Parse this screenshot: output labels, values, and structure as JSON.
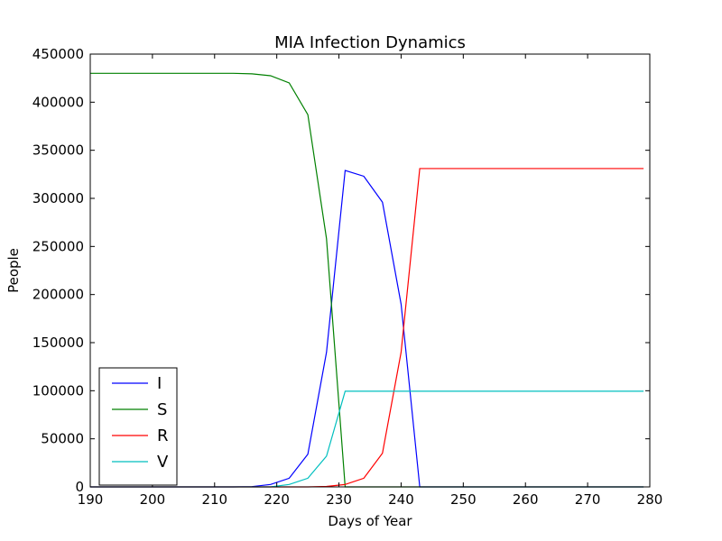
{
  "chart_data": {
    "type": "line",
    "title": "MIA Infection Dynamics",
    "xlabel": "Days of Year",
    "ylabel": "People",
    "xlim": [
      190,
      280
    ],
    "ylim": [
      0,
      450000
    ],
    "xticks": [
      190,
      200,
      210,
      220,
      230,
      240,
      250,
      260,
      270,
      280
    ],
    "yticks": [
      0,
      50000,
      100000,
      150000,
      200000,
      250000,
      300000,
      350000,
      400000,
      450000
    ],
    "grid": false,
    "legend_position": "lower-left",
    "series": [
      {
        "name": "I",
        "color": "#0000ff",
        "x": [
          190,
          213,
          216,
          219,
          222,
          225,
          228,
          231,
          234,
          237,
          240,
          243,
          279
        ],
        "y": [
          0,
          0,
          300,
          2500,
          9000,
          34000,
          140000,
          329000,
          323000,
          296000,
          190000,
          0,
          0
        ]
      },
      {
        "name": "S",
        "color": "#008000",
        "x": [
          190,
          213,
          216,
          219,
          222,
          225,
          228,
          231,
          234,
          279
        ],
        "y": [
          430000,
          430000,
          429500,
          427500,
          420000,
          387000,
          258000,
          0,
          0,
          0
        ]
      },
      {
        "name": "R",
        "color": "#ff0000",
        "x": [
          190,
          225,
          228,
          231,
          234,
          237,
          240,
          243,
          279
        ],
        "y": [
          0,
          0,
          500,
          2500,
          9000,
          35000,
          140000,
          331000,
          331000
        ]
      },
      {
        "name": "V",
        "color": "#00bfbf",
        "x": [
          190,
          219,
          222,
          225,
          228,
          231,
          279
        ],
        "y": [
          0,
          0,
          2500,
          9000,
          32000,
          99500,
          99500
        ]
      }
    ]
  }
}
